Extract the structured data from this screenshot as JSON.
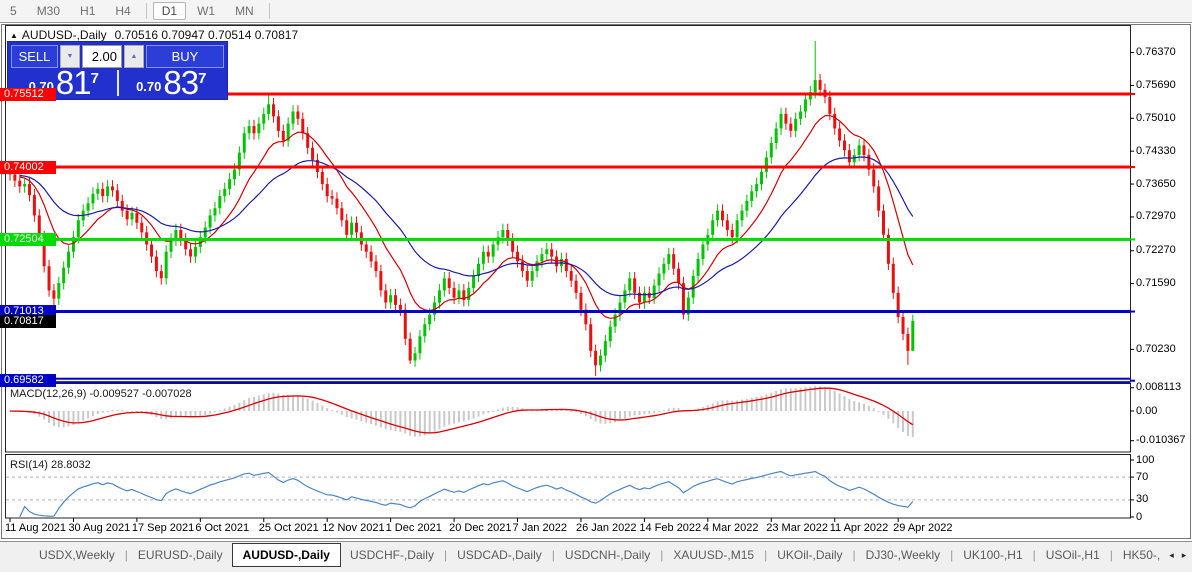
{
  "toolbar": {
    "items": [
      "5",
      "M30",
      "H1",
      "H4",
      "|",
      "D1",
      "W1",
      "MN",
      "|"
    ],
    "active": "D1"
  },
  "header": {
    "arrow": "▲",
    "symbol": "AUDUSD-,Daily",
    "ohlc": "0.70516 0.70947 0.70514 0.70817"
  },
  "trade_panel": {
    "sell_label": "SELL",
    "buy_label": "BUY",
    "volume": "2.00",
    "down_glyph": "▼",
    "up_glyph": "▲",
    "sell_price": {
      "prefix": "0.70",
      "big": "81",
      "sup": "7"
    },
    "buy_price": {
      "prefix": "0.70",
      "big": "83",
      "sup": "7"
    }
  },
  "chart_data": {
    "type": "candlestick",
    "title": "AUDUSD-,Daily",
    "ylim": [
      0.6952,
      0.7692
    ],
    "x_axis": {
      "tick_labels": [
        "11 Aug 2021",
        "30 Aug 2021",
        "17 Sep 2021",
        "6 Oct 2021",
        "25 Oct 2021",
        "12 Nov 2021",
        "1 Dec 2021",
        "20 Dec 2021",
        "7 Jan 2022",
        "26 Jan 2022",
        "14 Feb 2022",
        "4 Mar 2022",
        "23 Mar 2022",
        "11 Apr 2022",
        "29 Apr 2022"
      ],
      "tick_indices": [
        0,
        13,
        26,
        39,
        52,
        65,
        78,
        91,
        104,
        117,
        130,
        143,
        156,
        169,
        182
      ]
    },
    "y_axis": {
      "ticks": [
        "0.76370",
        "0.75690",
        "0.75010",
        "0.74330",
        "0.73650",
        "0.72970",
        "0.72270",
        "0.71590",
        "0.70230"
      ]
    },
    "levels": [
      {
        "price": 0.75512,
        "label": "0.75512",
        "color": "#ff0000",
        "style": "solid"
      },
      {
        "price": 0.74002,
        "label": "0.74002",
        "color": "#ff0000",
        "style": "solid"
      },
      {
        "price": 0.72504,
        "label": "0.72504",
        "color": "#00dc00",
        "style": "solid"
      },
      {
        "price": 0.71013,
        "label": "0.71013",
        "color": "#0000c8",
        "style": "solid"
      },
      {
        "price": 0.69582,
        "label": "0.69582",
        "color": "#0000c8",
        "style": "double"
      }
    ],
    "current_price_badge": {
      "price": 0.70817,
      "label": "0.70817",
      "color": "#000000"
    },
    "closes": [
      0.7385,
      0.7372,
      0.736,
      0.7365,
      0.7342,
      0.73,
      0.7255,
      0.7195,
      0.7145,
      0.7128,
      0.716,
      0.7192,
      0.7225,
      0.7255,
      0.729,
      0.731,
      0.7325,
      0.7345,
      0.7355,
      0.734,
      0.736,
      0.7352,
      0.733,
      0.731,
      0.7292,
      0.7305,
      0.7285,
      0.7265,
      0.724,
      0.7215,
      0.7185,
      0.717,
      0.7225,
      0.725,
      0.727,
      0.725,
      0.723,
      0.7215,
      0.7235,
      0.7255,
      0.7275,
      0.73,
      0.7315,
      0.734,
      0.7355,
      0.7375,
      0.7395,
      0.743,
      0.747,
      0.7485,
      0.747,
      0.749,
      0.751,
      0.753,
      0.7505,
      0.7475,
      0.7455,
      0.749,
      0.7515,
      0.75,
      0.747,
      0.744,
      0.7415,
      0.739,
      0.7365,
      0.734,
      0.7335,
      0.7315,
      0.729,
      0.726,
      0.7285,
      0.7265,
      0.724,
      0.7225,
      0.7205,
      0.7185,
      0.7145,
      0.712,
      0.7135,
      0.7115,
      0.7105,
      0.7045,
      0.7,
      0.7015,
      0.705,
      0.7075,
      0.7095,
      0.712,
      0.7145,
      0.717,
      0.715,
      0.713,
      0.7145,
      0.7125,
      0.715,
      0.7175,
      0.72,
      0.7225,
      0.7215,
      0.724,
      0.7255,
      0.727,
      0.725,
      0.7225,
      0.7205,
      0.7185,
      0.7165,
      0.7185,
      0.7205,
      0.722,
      0.723,
      0.7215,
      0.7195,
      0.721,
      0.7185,
      0.7165,
      0.714,
      0.7105,
      0.7075,
      0.702,
      0.699,
      0.701,
      0.704,
      0.707,
      0.7095,
      0.712,
      0.7145,
      0.717,
      0.714,
      0.712,
      0.714,
      0.713,
      0.7155,
      0.718,
      0.72,
      0.722,
      0.719,
      0.716,
      0.7095,
      0.713,
      0.7175,
      0.721,
      0.724,
      0.726,
      0.729,
      0.731,
      0.729,
      0.727,
      0.7255,
      0.729,
      0.731,
      0.733,
      0.735,
      0.7365,
      0.739,
      0.742,
      0.745,
      0.748,
      0.751,
      0.749,
      0.7475,
      0.75,
      0.7515,
      0.754,
      0.7555,
      0.758,
      0.756,
      0.7545,
      0.751,
      0.748,
      0.7455,
      0.7435,
      0.741,
      0.7425,
      0.7445,
      0.7425,
      0.7395,
      0.736,
      0.731,
      0.726,
      0.72,
      0.714,
      0.709,
      0.7055,
      0.702,
      0.70817
    ],
    "wick_overrides": {
      "9": {
        "l": 0.7106
      },
      "53": {
        "h": 0.7551
      },
      "82": {
        "l": 0.6993
      },
      "120": {
        "l": 0.6968
      },
      "138": {
        "l": 0.7085
      },
      "165": {
        "h": 0.7661
      },
      "184": {
        "l": 0.6991
      },
      "185": {
        "h": 0.70947,
        "l": 0.70514
      }
    },
    "moving_averages": [
      {
        "period": 12,
        "color": "#d40000"
      },
      {
        "period": 30,
        "color": "#1c1caa"
      }
    ],
    "indicators": {
      "macd": {
        "label": "MACD(12,26,9)",
        "values": "-0.009527 -0.007028",
        "fast": 12,
        "slow": 26,
        "signal": 9,
        "axis_ticks": [
          {
            "text": "0.008113",
            "v": 0.008113
          },
          {
            "text": "0.00",
            "v": 0
          },
          {
            "text": "-0.010367",
            "v": -0.010367
          }
        ],
        "hist_color": "#c9c9c9",
        "signal_color": "#e00000"
      },
      "rsi": {
        "label": "RSI(14)",
        "value": "28.8032",
        "period": 14,
        "levels": [
          70,
          30
        ],
        "axis_ticks": [
          {
            "text": "100",
            "v": 100
          },
          {
            "text": "70",
            "v": 70
          },
          {
            "text": "30",
            "v": 30
          },
          {
            "text": "0",
            "v": 0
          }
        ],
        "line_color": "#4d86c8",
        "level_color": "#b4b4b4"
      }
    },
    "colors": {
      "bull": "#00c400",
      "bear": "#ea1010"
    }
  },
  "tabs": {
    "items": [
      "USDX,Weekly",
      "EURUSD-,Daily",
      "AUDUSD-,Daily",
      "USDCHF-,Daily",
      "USDCAD-,Daily",
      "USDCNH-,Daily",
      "XAUUSD-,M15",
      "UKOil-,Daily",
      "DJ30-,Weekly",
      "UK100-,H1",
      "USOil-,H1",
      "HK50-,"
    ],
    "active_index": 2,
    "scroll_left": "◂",
    "scroll_right": "▸"
  }
}
